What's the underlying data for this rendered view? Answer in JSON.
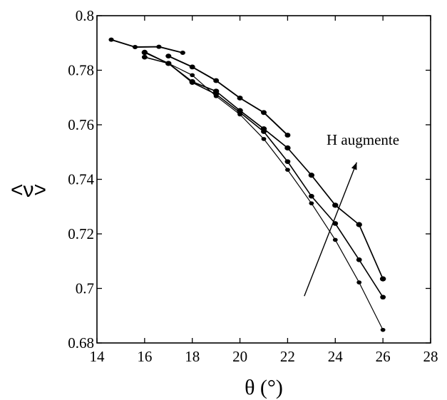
{
  "chart_data": {
    "type": "line",
    "title": "",
    "xlabel": "θ (°)",
    "ylabel": "<ν>",
    "xlim": [
      14,
      28
    ],
    "ylim": [
      0.68,
      0.8
    ],
    "xticks": [
      14,
      16,
      18,
      20,
      22,
      24,
      26,
      28
    ],
    "yticks": [
      0.68,
      0.7,
      0.72,
      0.74,
      0.76,
      0.78,
      0.8
    ],
    "xtick_labels": [
      "14",
      "16",
      "18",
      "20",
      "22",
      "24",
      "26",
      "28"
    ],
    "ytick_labels": [
      "0.68",
      "0.7",
      "0.72",
      "0.74",
      "0.76",
      "0.78",
      "0.8"
    ],
    "grid": false,
    "legend": "none",
    "series": [
      {
        "x": [
          14.6,
          15.6,
          16.6,
          17.6
        ],
        "y": [
          0.7912,
          0.7885,
          0.7886,
          0.7864
        ]
      },
      {
        "x": [
          16,
          17,
          18,
          19,
          20,
          21,
          22,
          23,
          24,
          25,
          26
        ],
        "y": [
          0.7865,
          0.7825,
          0.7758,
          0.7723,
          0.7652,
          0.7585,
          0.7515,
          0.7415,
          0.7305,
          0.7234,
          0.7035
        ]
      },
      {
        "x": [
          16,
          17,
          18,
          19,
          20,
          21,
          22,
          23,
          24,
          25,
          26
        ],
        "y": [
          0.7848,
          0.7825,
          0.7755,
          0.7712,
          0.7645,
          0.7575,
          0.7465,
          0.7338,
          0.7238,
          0.7105,
          0.6968
        ]
      },
      {
        "x": [
          16,
          17,
          18,
          19,
          20,
          21,
          22,
          23,
          24,
          25,
          26
        ],
        "y": [
          0.7868,
          0.7825,
          0.7782,
          0.7705,
          0.7638,
          0.7548,
          0.7435,
          0.7312,
          0.7178,
          0.7022,
          0.6848
        ]
      },
      {
        "x": [
          17,
          18,
          19,
          20,
          21,
          22
        ],
        "y": [
          0.7852,
          0.7812,
          0.7762,
          0.7698,
          0.7645,
          0.7562
        ]
      }
    ],
    "annotations": [
      {
        "text": "H augmente",
        "arrow_from": [
          22.7,
          0.6972
        ],
        "arrow_to": [
          24.9,
          0.7462
        ]
      }
    ]
  }
}
